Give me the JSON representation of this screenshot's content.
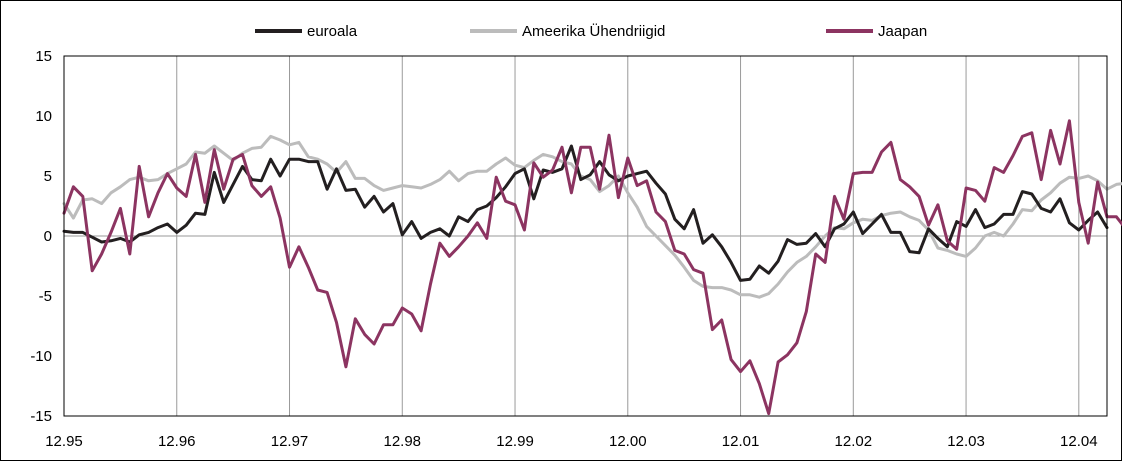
{
  "chart_data": {
    "type": "line",
    "title": "",
    "xlabel": "",
    "ylabel": "",
    "ylim": [
      -15,
      15
    ],
    "y_ticks": [
      15,
      10,
      5,
      0,
      -5,
      -10,
      -15
    ],
    "y_tick_labels": [
      "15",
      "10",
      "5",
      "0",
      "-5",
      "-10",
      "-15"
    ],
    "x_ticks": [
      "12.95",
      "12.96",
      "12.97",
      "12.98",
      "12.99",
      "12.00",
      "12.01",
      "12.02",
      "12.03",
      "12.04"
    ],
    "x_start": "1995-12",
    "x_end": "2004-03",
    "grid": "vertical lines at ticks plus horizontal line at 0",
    "legend": {
      "placement": "top-center",
      "entries": [
        "euroala",
        "Ameerika Ühendriigid",
        "Jaapan"
      ]
    },
    "colors": {
      "euroala": "#231f20",
      "Ameerika Ühendriigid": "#bcbcbc",
      "Jaapan": "#8c3461",
      "gridline": "#9a9a9a"
    },
    "series": [
      {
        "name": "euroala",
        "values": [
          0.4,
          0.3,
          0.3,
          -0.1,
          -0.5,
          -0.4,
          -0.2,
          -0.5,
          0.1,
          0.3,
          0.7,
          1.0,
          0.3,
          0.9,
          1.9,
          1.8,
          5.3,
          2.8,
          4.3,
          5.8,
          4.7,
          4.6,
          6.4,
          5.0,
          6.4,
          6.4,
          6.2,
          6.2,
          3.9,
          5.6,
          3.8,
          3.9,
          2.4,
          3.3,
          2.0,
          2.7,
          0.1,
          1.2,
          -0.2,
          0.3,
          0.6,
          0.0,
          1.6,
          1.2,
          2.2,
          2.5,
          3.2,
          4.1,
          5.2,
          5.6,
          3.1,
          5.5,
          5.3,
          5.6,
          7.5,
          4.7,
          5.1,
          6.2,
          5.1,
          4.6,
          5.0,
          5.2,
          5.4,
          4.4,
          3.5,
          1.4,
          0.6,
          2.2,
          -0.6,
          0.1,
          -0.9,
          -2.2,
          -3.7,
          -3.6,
          -2.5,
          -3.1,
          -2.1,
          -0.3,
          -0.7,
          -0.6,
          0.2,
          -0.9,
          0.6,
          1.0,
          2.0,
          0.2,
          1.0,
          1.8,
          0.3,
          0.3,
          -1.3,
          -1.4,
          0.6,
          -0.2,
          -0.9,
          1.2,
          0.8,
          2.2,
          0.7,
          1.0,
          1.8,
          1.8,
          3.7,
          3.5,
          2.3,
          2.0,
          3.1,
          1.1,
          0.5,
          1.3,
          2.0,
          0.7
        ]
      },
      {
        "name": "Ameerika Ühendriigid",
        "values": [
          2.7,
          1.5,
          3.0,
          3.1,
          2.7,
          3.6,
          4.1,
          4.7,
          4.9,
          4.6,
          4.7,
          5.2,
          5.6,
          6.0,
          7.0,
          6.9,
          7.5,
          6.9,
          6.3,
          6.9,
          7.3,
          7.4,
          8.3,
          8.0,
          7.6,
          7.8,
          6.6,
          6.4,
          6.0,
          5.3,
          6.2,
          4.8,
          4.8,
          4.2,
          3.8,
          4.0,
          4.2,
          4.1,
          4.0,
          4.3,
          4.7,
          5.4,
          4.6,
          5.2,
          5.4,
          5.4,
          6.0,
          6.5,
          5.9,
          5.7,
          6.3,
          6.8,
          6.6,
          6.2,
          6.0,
          5.0,
          4.7,
          3.7,
          4.2,
          5.0,
          3.6,
          2.4,
          0.8,
          0.0,
          -0.8,
          -1.6,
          -2.6,
          -3.7,
          -4.2,
          -4.3,
          -4.3,
          -4.5,
          -4.9,
          -4.9,
          -5.1,
          -4.8,
          -4.0,
          -3.0,
          -2.2,
          -1.7,
          -0.9,
          0.0,
          0.7,
          0.6,
          1.1,
          1.4,
          1.3,
          1.7,
          1.9,
          2.0,
          1.6,
          1.3,
          0.5,
          -1.0,
          -1.2,
          -1.5,
          -1.7,
          -1.0,
          0.0,
          0.3,
          0.0,
          1.0,
          2.2,
          2.1,
          3.0,
          3.6,
          4.4,
          4.9,
          4.8,
          5.0,
          4.6,
          3.9,
          4.3,
          4.4,
          3.6
        ]
      },
      {
        "name": "Jaapan",
        "values": [
          1.9,
          4.1,
          3.3,
          -2.9,
          -1.5,
          0.3,
          2.3,
          -1.5,
          5.8,
          1.6,
          3.6,
          5.2,
          4.0,
          3.3,
          6.8,
          2.8,
          7.2,
          3.9,
          6.4,
          6.8,
          4.2,
          3.3,
          4.1,
          1.5,
          -2.6,
          -0.9,
          -2.6,
          -4.5,
          -4.7,
          -7.2,
          -10.9,
          -6.9,
          -8.2,
          -9.0,
          -7.4,
          -7.4,
          -6.0,
          -6.5,
          -7.9,
          -4.0,
          -0.6,
          -1.7,
          -0.9,
          0.0,
          1.1,
          -0.2,
          4.9,
          2.9,
          2.6,
          0.5,
          6.1,
          4.9,
          5.5,
          7.4,
          3.6,
          7.4,
          7.4,
          3.9,
          8.4,
          3.2,
          6.5,
          4.2,
          4.6,
          2.0,
          1.2,
          -1.2,
          -1.5,
          -2.8,
          -3.1,
          -7.8,
          -7.0,
          -10.3,
          -11.3,
          -10.4,
          -12.3,
          -14.8,
          -10.5,
          -9.9,
          -8.9,
          -6.3,
          -1.5,
          -2.2,
          3.3,
          1.4,
          5.2,
          5.3,
          5.3,
          7.0,
          7.8,
          4.7,
          4.1,
          3.3,
          0.9,
          2.6,
          -0.4,
          -1.1,
          4.0,
          3.8,
          2.9,
          5.7,
          5.3,
          6.7,
          8.3,
          8.6,
          4.7,
          8.8,
          6.0,
          9.6,
          2.8,
          -0.6,
          4.5,
          1.6,
          1.6,
          0.6
        ]
      }
    ]
  }
}
